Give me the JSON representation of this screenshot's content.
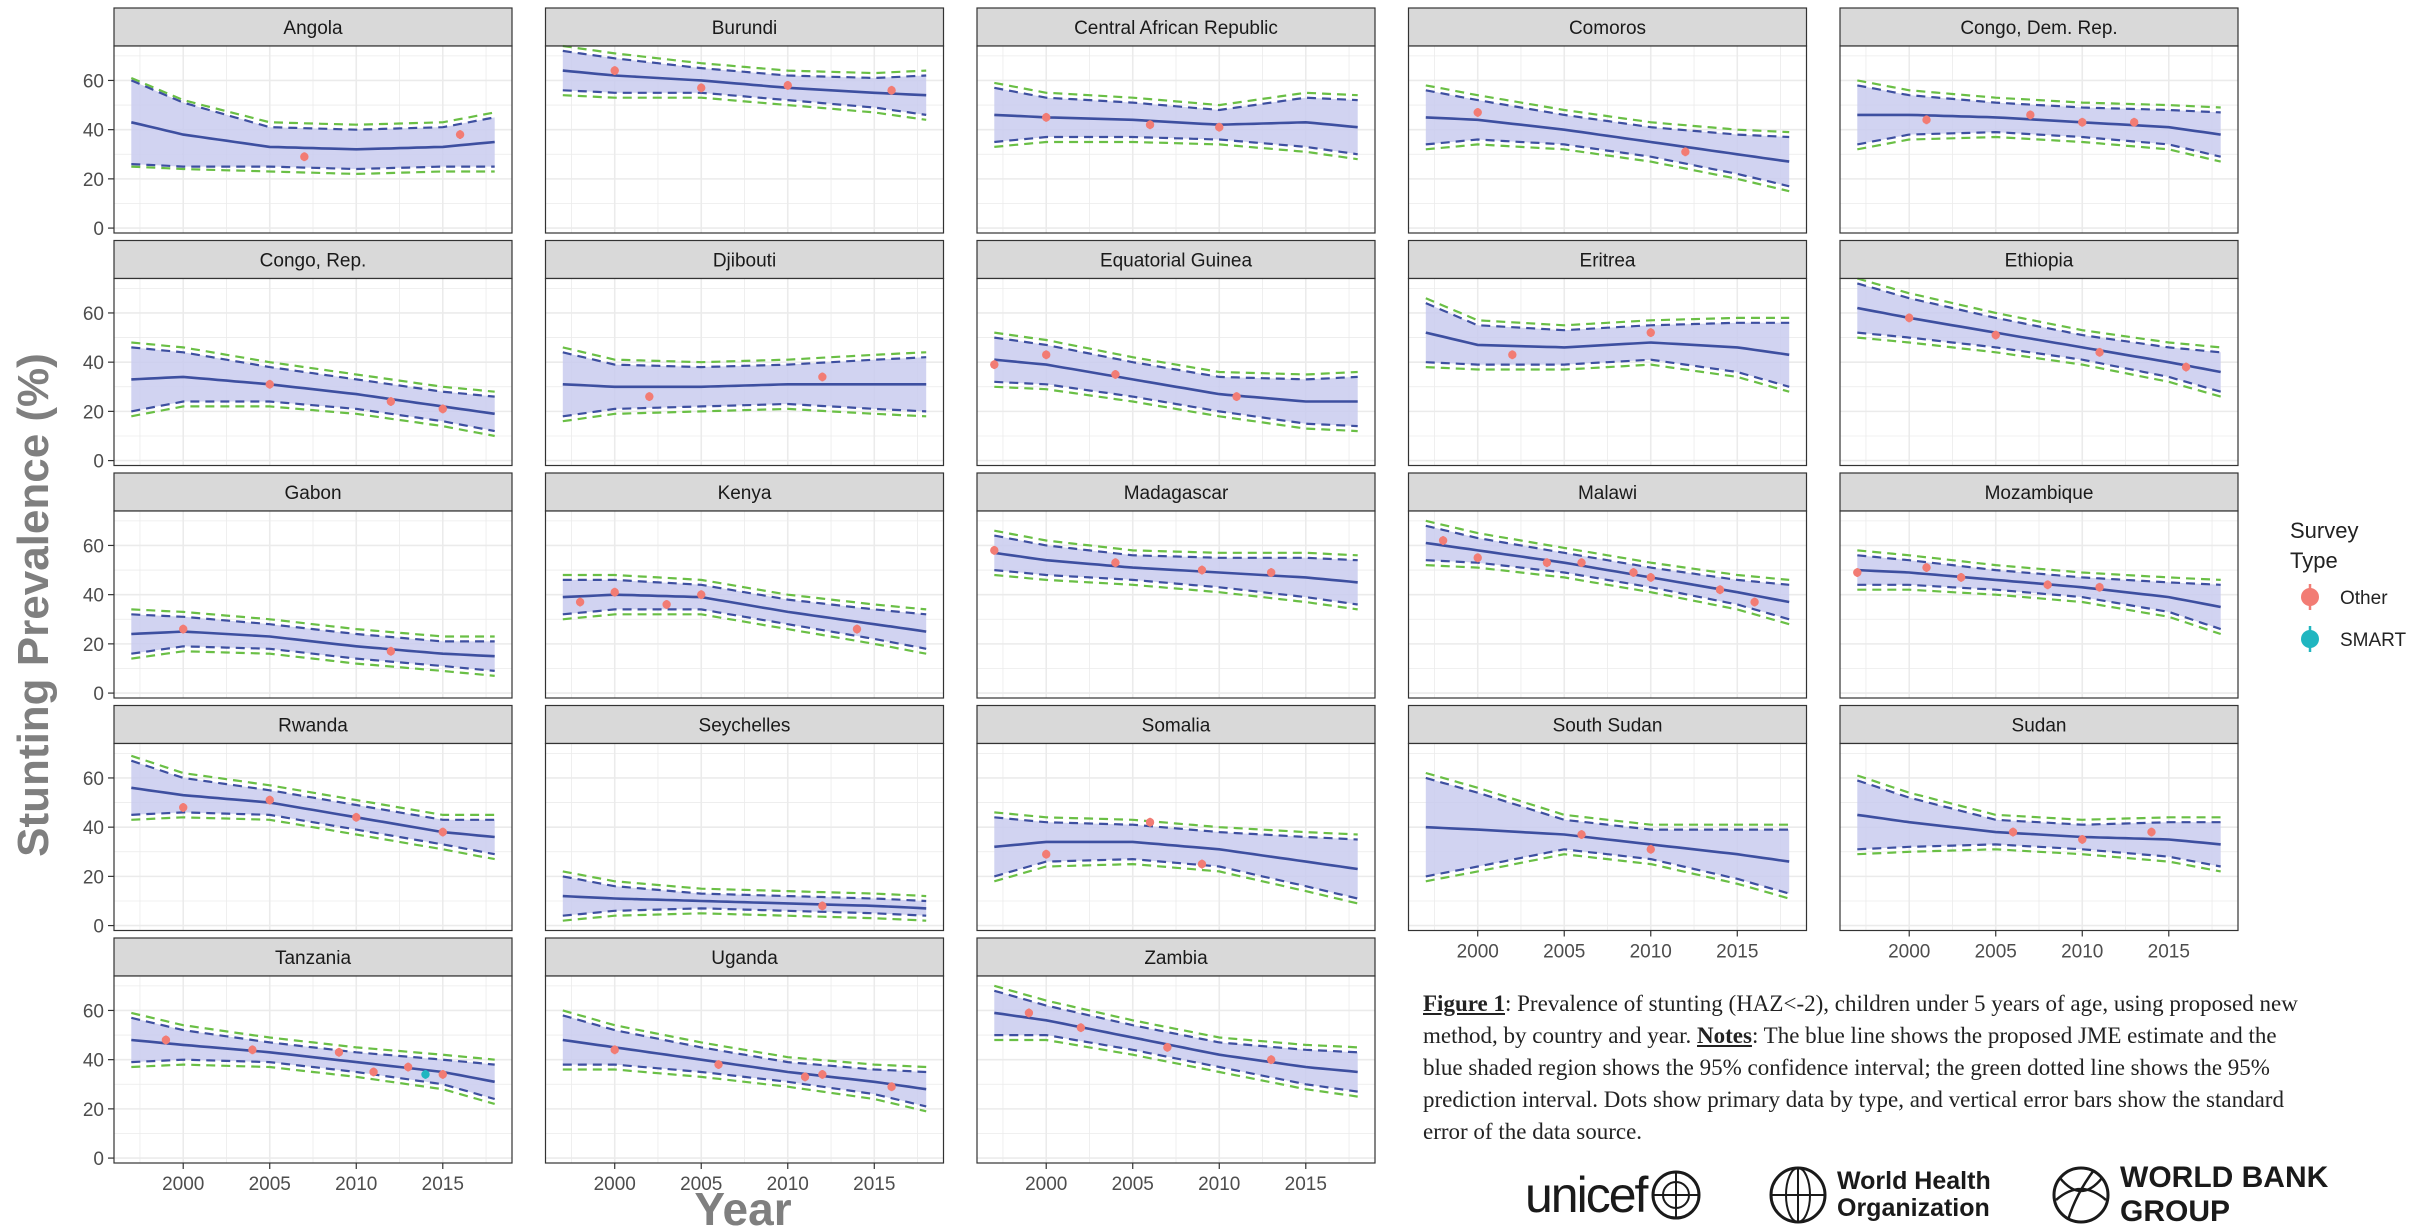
{
  "chart_data": {
    "type": "line",
    "ylabel": "Stunting Prevalence (%)",
    "xlabel": "Year",
    "xlim": [
      1996,
      2019
    ],
    "ylim": [
      -2,
      74
    ],
    "x_ticks": [
      2000,
      2005,
      2010,
      2015
    ],
    "y_ticks": [
      0,
      20,
      40,
      60
    ],
    "grid": true,
    "legend": {
      "title": "Survey Type",
      "position": "right",
      "items": [
        {
          "label": "Other",
          "color": "#f27c74"
        },
        {
          "label": "SMART",
          "color": "#20b6c0"
        }
      ]
    },
    "colors": {
      "estimate": "#3d4fa0",
      "ci_fill": "#c9cbee",
      "pi": "#6abf45",
      "ci_dash": "#3d4fa0",
      "strip": "#d9d9d9",
      "grid": "#ebebeb"
    },
    "years": [
      1997,
      2000,
      2005,
      2010,
      2015,
      2018
    ],
    "panels": [
      {
        "name": "Angola",
        "estimate": [
          43,
          38,
          33,
          32,
          33,
          35
        ],
        "ci_half": [
          17,
          13,
          8,
          8,
          8,
          10
        ],
        "pi_half": [
          18,
          14,
          10,
          10,
          10,
          12
        ],
        "points": [
          [
            2007,
            29,
            "Other"
          ],
          [
            2016,
            38,
            "Other"
          ]
        ]
      },
      {
        "name": "Burundi",
        "estimate": [
          64,
          62,
          60,
          57,
          55,
          54
        ],
        "ci_half": [
          8,
          7,
          5,
          5,
          6,
          8
        ],
        "pi_half": [
          10,
          9,
          7,
          7,
          8,
          10
        ],
        "points": [
          [
            2000,
            64,
            "Other"
          ],
          [
            2005,
            57,
            "Other"
          ],
          [
            2010,
            58,
            "Other"
          ],
          [
            2016,
            56,
            "Other"
          ]
        ]
      },
      {
        "name": "Central African Republic",
        "estimate": [
          46,
          45,
          44,
          42,
          43,
          41
        ],
        "ci_half": [
          11,
          8,
          7,
          6,
          10,
          11
        ],
        "pi_half": [
          13,
          10,
          9,
          8,
          12,
          13
        ],
        "points": [
          [
            2000,
            45,
            "Other"
          ],
          [
            2006,
            42,
            "Other"
          ],
          [
            2010,
            41,
            "Other"
          ]
        ]
      },
      {
        "name": "Comoros",
        "estimate": [
          45,
          44,
          40,
          35,
          30,
          27
        ],
        "ci_half": [
          11,
          8,
          6,
          6,
          8,
          10
        ],
        "pi_half": [
          13,
          10,
          8,
          8,
          10,
          12
        ],
        "points": [
          [
            2000,
            47,
            "Other"
          ],
          [
            2012,
            31,
            "Other"
          ]
        ]
      },
      {
        "name": "Congo, Dem. Rep.",
        "estimate": [
          46,
          46,
          45,
          43,
          41,
          38
        ],
        "ci_half": [
          12,
          8,
          6,
          6,
          7,
          9
        ],
        "pi_half": [
          14,
          10,
          8,
          8,
          9,
          11
        ],
        "points": [
          [
            2001,
            44,
            "Other"
          ],
          [
            2007,
            46,
            "Other"
          ],
          [
            2010,
            43,
            "Other"
          ],
          [
            2013,
            43,
            "Other"
          ]
        ]
      },
      {
        "name": "Congo, Rep.",
        "estimate": [
          33,
          34,
          31,
          27,
          22,
          19
        ],
        "ci_half": [
          13,
          10,
          7,
          6,
          6,
          7
        ],
        "pi_half": [
          15,
          12,
          9,
          8,
          8,
          9
        ],
        "points": [
          [
            2005,
            31,
            "Other"
          ],
          [
            2012,
            24,
            "Other"
          ],
          [
            2015,
            21,
            "Other"
          ]
        ]
      },
      {
        "name": "Djibouti",
        "estimate": [
          31,
          30,
          30,
          31,
          31,
          31
        ],
        "ci_half": [
          13,
          9,
          8,
          8,
          10,
          11
        ],
        "pi_half": [
          15,
          11,
          10,
          10,
          12,
          13
        ],
        "points": [
          [
            2002,
            26,
            "Other"
          ],
          [
            2012,
            34,
            "Other"
          ]
        ]
      },
      {
        "name": "Equatorial Guinea",
        "estimate": [
          41,
          39,
          33,
          27,
          24,
          24
        ],
        "ci_half": [
          9,
          8,
          7,
          7,
          9,
          10
        ],
        "pi_half": [
          11,
          10,
          9,
          9,
          11,
          12
        ],
        "points": [
          [
            1997,
            39,
            "Other"
          ],
          [
            2000,
            43,
            "Other"
          ],
          [
            2004,
            35,
            "Other"
          ],
          [
            2011,
            26,
            "Other"
          ]
        ]
      },
      {
        "name": "Eritrea",
        "estimate": [
          52,
          47,
          46,
          48,
          46,
          43
        ],
        "ci_half": [
          12,
          8,
          7,
          7,
          10,
          13
        ],
        "pi_half": [
          14,
          10,
          9,
          9,
          12,
          15
        ],
        "points": [
          [
            2002,
            43,
            "Other"
          ],
          [
            2010,
            52,
            "Other"
          ]
        ]
      },
      {
        "name": "Ethiopia",
        "estimate": [
          62,
          58,
          52,
          46,
          40,
          36
        ],
        "ci_half": [
          10,
          8,
          6,
          5,
          6,
          8
        ],
        "pi_half": [
          12,
          10,
          8,
          7,
          8,
          10
        ],
        "points": [
          [
            2000,
            58,
            "Other"
          ],
          [
            2005,
            51,
            "Other"
          ],
          [
            2011,
            44,
            "Other"
          ],
          [
            2016,
            38,
            "Other"
          ]
        ]
      },
      {
        "name": "Gabon",
        "estimate": [
          24,
          25,
          23,
          19,
          16,
          15
        ],
        "ci_half": [
          8,
          6,
          5,
          5,
          5,
          6
        ],
        "pi_half": [
          10,
          8,
          7,
          7,
          7,
          8
        ],
        "points": [
          [
            2000,
            26,
            "Other"
          ],
          [
            2012,
            17,
            "Other"
          ]
        ]
      },
      {
        "name": "Kenya",
        "estimate": [
          39,
          40,
          39,
          33,
          28,
          25
        ],
        "ci_half": [
          7,
          6,
          5,
          5,
          6,
          7
        ],
        "pi_half": [
          9,
          8,
          7,
          7,
          8,
          9
        ],
        "points": [
          [
            1998,
            37,
            "Other"
          ],
          [
            2000,
            41,
            "Other"
          ],
          [
            2003,
            36,
            "Other"
          ],
          [
            2005,
            40,
            "Other"
          ],
          [
            2014,
            26,
            "Other"
          ]
        ]
      },
      {
        "name": "Madagascar",
        "estimate": [
          57,
          54,
          51,
          49,
          47,
          45
        ],
        "ci_half": [
          7,
          6,
          5,
          6,
          8,
          9
        ],
        "pi_half": [
          9,
          8,
          7,
          8,
          10,
          11
        ],
        "points": [
          [
            1997,
            58,
            "Other"
          ],
          [
            2004,
            53,
            "Other"
          ],
          [
            2009,
            50,
            "Other"
          ],
          [
            2013,
            49,
            "Other"
          ]
        ]
      },
      {
        "name": "Malawi",
        "estimate": [
          61,
          58,
          53,
          47,
          41,
          37
        ],
        "ci_half": [
          7,
          5,
          4,
          4,
          5,
          7
        ],
        "pi_half": [
          9,
          7,
          6,
          6,
          7,
          9
        ],
        "points": [
          [
            1998,
            62,
            "Other"
          ],
          [
            2000,
            55,
            "Other"
          ],
          [
            2004,
            53,
            "Other"
          ],
          [
            2006,
            53,
            "Other"
          ],
          [
            2009,
            49,
            "Other"
          ],
          [
            2010,
            47,
            "Other"
          ],
          [
            2014,
            42,
            "Other"
          ],
          [
            2016,
            37,
            "Other"
          ]
        ]
      },
      {
        "name": "Mozambique",
        "estimate": [
          50,
          49,
          46,
          43,
          39,
          35
        ],
        "ci_half": [
          6,
          5,
          4,
          4,
          6,
          9
        ],
        "pi_half": [
          8,
          7,
          6,
          6,
          8,
          11
        ],
        "points": [
          [
            1997,
            49,
            "Other"
          ],
          [
            2001,
            51,
            "Other"
          ],
          [
            2003,
            47,
            "Other"
          ],
          [
            2008,
            44,
            "Other"
          ],
          [
            2011,
            43,
            "Other"
          ]
        ]
      },
      {
        "name": "Rwanda",
        "estimate": [
          56,
          53,
          50,
          44,
          38,
          36
        ],
        "ci_half": [
          11,
          7,
          5,
          5,
          5,
          7
        ],
        "pi_half": [
          13,
          9,
          7,
          7,
          7,
          9
        ],
        "points": [
          [
            2000,
            48,
            "Other"
          ],
          [
            2005,
            51,
            "Other"
          ],
          [
            2010,
            44,
            "Other"
          ],
          [
            2015,
            38,
            "Other"
          ]
        ]
      },
      {
        "name": "Seychelles",
        "estimate": [
          12,
          11,
          10,
          9,
          8,
          7
        ],
        "ci_half": [
          8,
          5,
          3,
          3,
          3,
          3
        ],
        "pi_half": [
          10,
          7,
          5,
          5,
          5,
          5
        ],
        "points": [
          [
            2012,
            8,
            "Other"
          ]
        ]
      },
      {
        "name": "Somalia",
        "estimate": [
          32,
          34,
          34,
          31,
          26,
          23
        ],
        "ci_half": [
          12,
          8,
          7,
          7,
          10,
          12
        ],
        "pi_half": [
          14,
          10,
          9,
          9,
          12,
          14
        ],
        "points": [
          [
            2000,
            29,
            "Other"
          ],
          [
            2006,
            42,
            "Other"
          ],
          [
            2009,
            25,
            "Other"
          ]
        ]
      },
      {
        "name": "South Sudan",
        "estimate": [
          40,
          39,
          37,
          33,
          29,
          26
        ],
        "ci_half": [
          20,
          15,
          6,
          6,
          10,
          13
        ],
        "pi_half": [
          22,
          17,
          8,
          8,
          12,
          15
        ],
        "points": [
          [
            2006,
            37,
            "Other"
          ],
          [
            2010,
            31,
            "Other"
          ]
        ]
      },
      {
        "name": "Sudan",
        "estimate": [
          45,
          42,
          38,
          36,
          35,
          33
        ],
        "ci_half": [
          14,
          10,
          5,
          5,
          7,
          9
        ],
        "pi_half": [
          16,
          12,
          7,
          7,
          9,
          11
        ],
        "points": [
          [
            2006,
            38,
            "Other"
          ],
          [
            2010,
            35,
            "Other"
          ],
          [
            2014,
            38,
            "Other"
          ]
        ]
      },
      {
        "name": "Tanzania",
        "estimate": [
          48,
          46,
          43,
          39,
          35,
          31
        ],
        "ci_half": [
          9,
          6,
          4,
          4,
          5,
          7
        ],
        "pi_half": [
          11,
          8,
          6,
          6,
          7,
          9
        ],
        "points": [
          [
            1999,
            48,
            "Other"
          ],
          [
            2004,
            44,
            "Other"
          ],
          [
            2009,
            43,
            "Other"
          ],
          [
            2011,
            35,
            "Other"
          ],
          [
            2013,
            37,
            "Other"
          ],
          [
            2014,
            34,
            "SMART"
          ],
          [
            2015,
            34,
            "Other"
          ]
        ]
      },
      {
        "name": "Uganda",
        "estimate": [
          48,
          45,
          40,
          35,
          31,
          28
        ],
        "ci_half": [
          10,
          7,
          5,
          4,
          5,
          7
        ],
        "pi_half": [
          12,
          9,
          7,
          6,
          7,
          9
        ],
        "points": [
          [
            2000,
            44,
            "Other"
          ],
          [
            2006,
            38,
            "Other"
          ],
          [
            2011,
            33,
            "Other"
          ],
          [
            2012,
            34,
            "Other"
          ],
          [
            2016,
            29,
            "Other"
          ]
        ]
      },
      {
        "name": "Zambia",
        "estimate": [
          59,
          56,
          49,
          42,
          37,
          35
        ],
        "ci_half": [
          9,
          6,
          5,
          5,
          7,
          8
        ],
        "pi_half": [
          11,
          8,
          7,
          7,
          9,
          10
        ],
        "points": [
          [
            1999,
            59,
            "Other"
          ],
          [
            2002,
            53,
            "Other"
          ],
          [
            2007,
            45,
            "Other"
          ],
          [
            2013,
            40,
            "Other"
          ]
        ]
      }
    ]
  },
  "caption": {
    "figure_label": "Figure 1",
    "figure_text": ": Prevalence of stunting (HAZ<-2), children under 5 years of age, using proposed new method, by country and year.  ",
    "notes_label": "Notes",
    "notes_text": ": The blue line shows the proposed JME estimate and the blue shaded region shows the 95% confidence interval; the green dotted line shows the 95% prediction interval. Dots show primary data by type, and vertical error bars show the standard error of the data source."
  },
  "logos": {
    "unicef": "unicef",
    "who_line1": "World Health",
    "who_line2": "Organization",
    "wbg": "WORLD BANK GROUP"
  }
}
